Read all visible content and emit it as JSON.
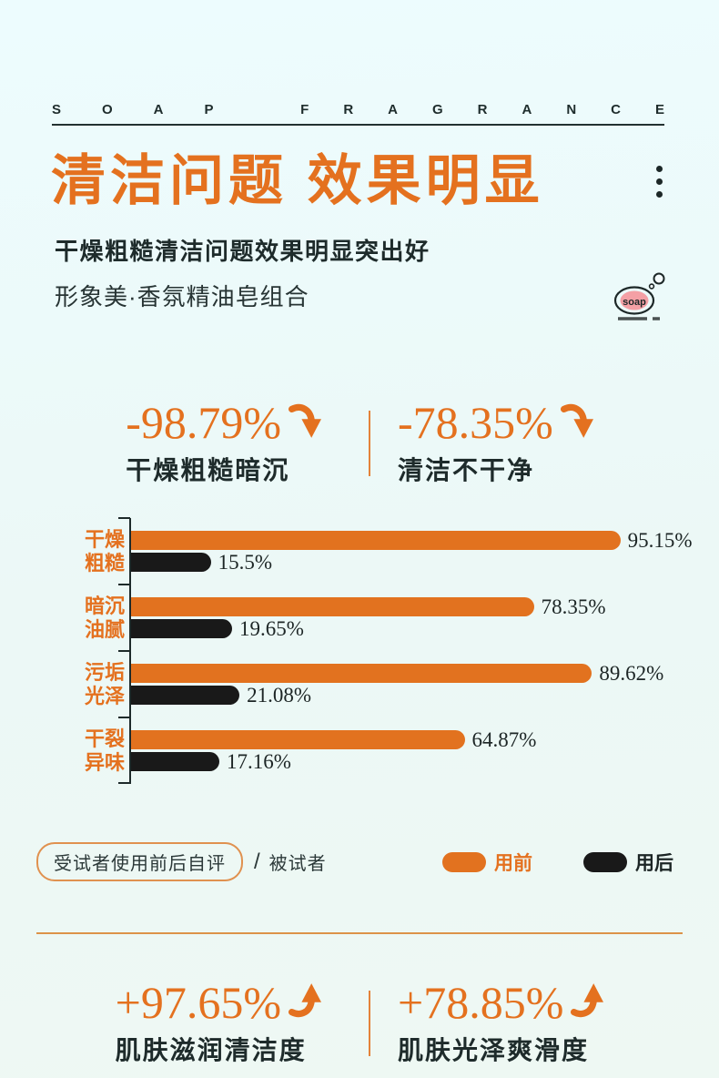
{
  "colors": {
    "accent_orange": "#e4711f",
    "bar_before": "#e2721f",
    "bar_after": "#191919",
    "dark_text": "#1e2b2b",
    "background_top": "#edfcfe",
    "background_bottom": "#eef8f3"
  },
  "brand": {
    "word1": "SOAP",
    "word2": "FRAGRANCE"
  },
  "header": {
    "title": "清洁问题 效果明显",
    "subtitle_bold": "干燥粗糙清洁问题效果明显突出好",
    "subtitle": "形象美·香氛精油皂组合",
    "soap_icon_text": "soap"
  },
  "top_stats": [
    {
      "value": "-98.79%",
      "label": "干燥粗糙暗沉",
      "direction": "down"
    },
    {
      "value": "-78.35%",
      "label": "清洁不干净",
      "direction": "down"
    }
  ],
  "chart_data": {
    "type": "bar",
    "orientation": "horizontal",
    "categories": [
      "干燥粗糙",
      "暗沉油腻",
      "污垢光泽",
      "干裂异味"
    ],
    "category_lines": [
      {
        "line1": "干燥",
        "line2": "粗糙"
      },
      {
        "line1": "暗沉",
        "line2": "油腻"
      },
      {
        "line1": "污垢",
        "line2": "光泽"
      },
      {
        "line1": "干裂",
        "line2": "异味"
      }
    ],
    "xlim": [
      0,
      100
    ],
    "grid": false,
    "legend_position": "bottom-right",
    "series": [
      {
        "name": "用前",
        "color": "#e2721f",
        "values": [
          95.15,
          78.35,
          89.62,
          64.87
        ],
        "value_labels": [
          "95.15%",
          "78.35%",
          "89.62%",
          "64.87%"
        ]
      },
      {
        "name": "用后",
        "color": "#191919",
        "values": [
          15.5,
          19.65,
          21.08,
          17.16
        ],
        "value_labels": [
          "15.5%",
          "19.65%",
          "21.08%",
          "17.16%"
        ]
      }
    ]
  },
  "legend": {
    "note_pill": "受试者使用前后自评",
    "separator": "/",
    "note_text": "被试者",
    "before_label": "用前",
    "after_label": "用后"
  },
  "bottom_stats": [
    {
      "value": "+97.65%",
      "label": "肌肤滋润清洁度",
      "direction": "up"
    },
    {
      "value": "+78.85%",
      "label": "肌肤光泽爽滑度",
      "direction": "up"
    }
  ]
}
